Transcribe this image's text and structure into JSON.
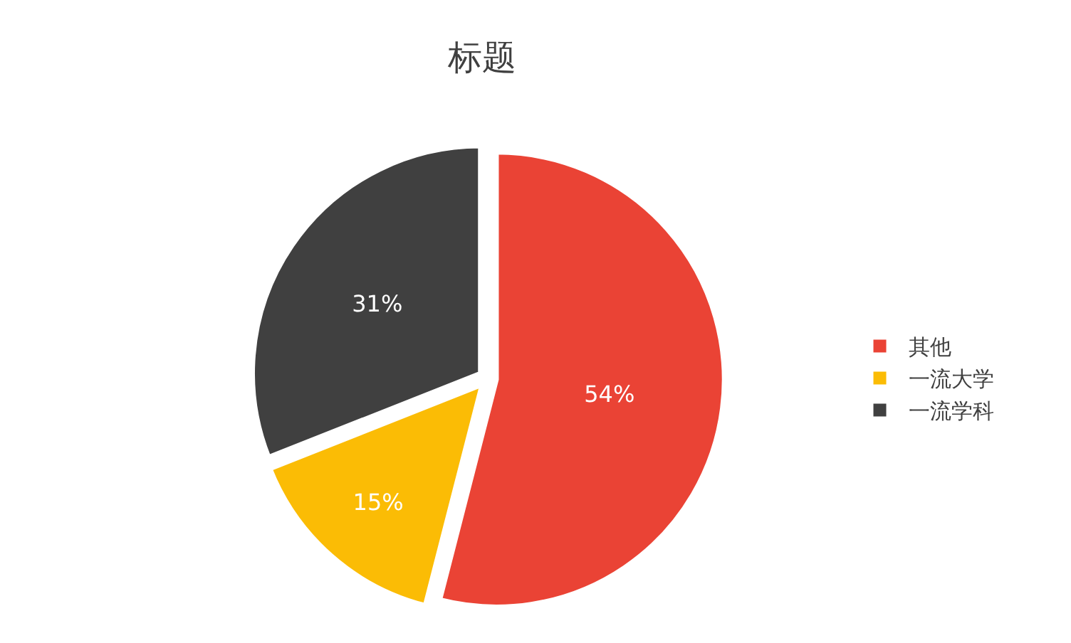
{
  "chart_data": {
    "type": "pie",
    "title": "标题",
    "categories": [
      "其他",
      "一流大学",
      "一流学科"
    ],
    "values": [
      54,
      15,
      31
    ],
    "colors": [
      "#ea4335",
      "#fbbc05",
      "#404040"
    ],
    "value_labels": [
      "54%",
      "15%",
      "31%"
    ],
    "legend": "right"
  }
}
